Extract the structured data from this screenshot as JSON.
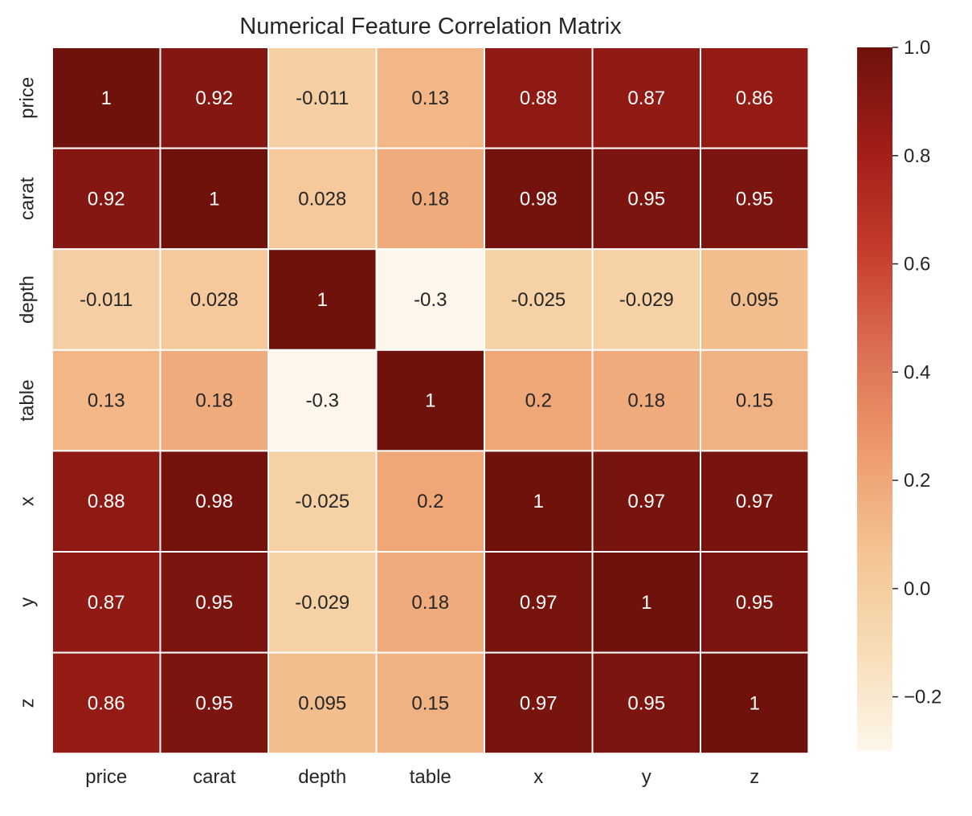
{
  "chart_data": {
    "type": "heatmap",
    "title": "Numerical Feature Correlation Matrix",
    "xlabel": "",
    "ylabel": "",
    "x_categories": [
      "price",
      "carat",
      "depth",
      "table",
      "x",
      "y",
      "z"
    ],
    "y_categories": [
      "price",
      "carat",
      "depth",
      "table",
      "x",
      "y",
      "z"
    ],
    "matrix": [
      [
        1,
        0.92,
        -0.011,
        0.13,
        0.88,
        0.87,
        0.86
      ],
      [
        0.92,
        1,
        0.028,
        0.18,
        0.98,
        0.95,
        0.95
      ],
      [
        -0.011,
        0.028,
        1,
        -0.3,
        -0.025,
        -0.029,
        0.095
      ],
      [
        0.13,
        0.18,
        -0.3,
        1,
        0.2,
        0.18,
        0.15
      ],
      [
        0.88,
        0.98,
        -0.025,
        0.2,
        1,
        0.97,
        0.97
      ],
      [
        0.87,
        0.95,
        -0.029,
        0.18,
        0.97,
        1,
        0.95
      ],
      [
        0.86,
        0.95,
        0.095,
        0.15,
        0.97,
        0.95,
        1
      ]
    ],
    "cell_labels": [
      [
        "1",
        "0.92",
        "-0.011",
        "0.13",
        "0.88",
        "0.87",
        "0.86"
      ],
      [
        "0.92",
        "1",
        "0.028",
        "0.18",
        "0.98",
        "0.95",
        "0.95"
      ],
      [
        "-0.011",
        "0.028",
        "1",
        "-0.3",
        "-0.025",
        "-0.029",
        "0.095"
      ],
      [
        "0.13",
        "0.18",
        "-0.3",
        "1",
        "0.2",
        "0.18",
        "0.15"
      ],
      [
        "0.88",
        "0.98",
        "-0.025",
        "0.2",
        "1",
        "0.97",
        "0.97"
      ],
      [
        "0.87",
        "0.95",
        "-0.029",
        "0.18",
        "0.97",
        "1",
        "0.95"
      ],
      [
        "0.86",
        "0.95",
        "0.095",
        "0.15",
        "0.97",
        "0.95",
        "1"
      ]
    ],
    "colorbar": {
      "range": [
        -0.3,
        1.0
      ],
      "ticks": [
        1.0,
        0.8,
        0.6,
        0.4,
        0.2,
        0.0,
        -0.2
      ],
      "tick_labels": [
        "1.0",
        "0.8",
        "0.6",
        "0.4",
        "0.2",
        "0.0",
        "−0.2"
      ],
      "colormap": "OrRd"
    },
    "colormap_stops": [
      "#fff7ec",
      "#fee8c8",
      "#fdd49e",
      "#fdbb84",
      "#fc8d59",
      "#ef6548",
      "#d7301f",
      "#b30000",
      "#7f0000"
    ],
    "colormap_display_stops": [
      "#fdf6ea",
      "#f7ddb6",
      "#f4c393",
      "#ee9a6c",
      "#db6e53",
      "#c53b2d",
      "#a01d17",
      "#6f120c"
    ],
    "text_colors": {
      "light": "#ffffff",
      "dark": "#262626"
    },
    "grid": false,
    "cell_separator_color": "#ffffff"
  }
}
